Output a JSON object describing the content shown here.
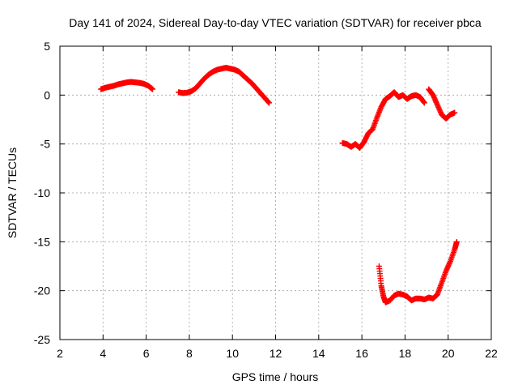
{
  "chart_data": {
    "type": "scatter",
    "title": "Day 141 of 2024, Sidereal Day-to-day VTEC variation (SDTVAR) for receiver pbca",
    "xlabel": "GPS time / hours",
    "ylabel": "SDTVAR / TECUs",
    "xlim": [
      2,
      22
    ],
    "ylim": [
      -25,
      5
    ],
    "xticks": [
      2,
      4,
      6,
      8,
      10,
      12,
      14,
      16,
      18,
      20,
      22
    ],
    "yticks": [
      5,
      0,
      -5,
      -10,
      -15,
      -20,
      -25
    ],
    "grid": true,
    "marker": "plus",
    "series": [
      {
        "name": "pbca",
        "color": "#ff0000",
        "segments": [
          {
            "x": [
              3.9,
              4.1,
              4.3,
              4.5,
              4.7,
              4.9,
              5.1,
              5.3,
              5.5,
              5.7,
              5.9,
              6.1,
              6.3
            ],
            "y": [
              0.6,
              0.75,
              0.85,
              0.95,
              1.1,
              1.2,
              1.3,
              1.35,
              1.3,
              1.25,
              1.15,
              0.95,
              0.6
            ]
          },
          {
            "x": [
              7.5,
              7.7,
              7.9,
              8.1,
              8.3,
              8.5,
              8.7,
              8.9,
              9.1,
              9.3,
              9.5,
              9.7,
              9.9,
              10.1,
              10.3,
              10.5,
              10.7,
              10.9,
              11.1,
              11.3,
              11.5,
              11.7
            ],
            "y": [
              0.3,
              0.2,
              0.25,
              0.4,
              0.7,
              1.2,
              1.7,
              2.1,
              2.4,
              2.6,
              2.7,
              2.8,
              2.7,
              2.6,
              2.4,
              2.0,
              1.6,
              1.2,
              0.7,
              0.2,
              -0.3,
              -0.8
            ]
          },
          {
            "x": [
              15.1,
              15.3,
              15.5,
              15.7,
              15.9,
              16.1,
              16.3,
              16.5,
              16.7,
              16.9,
              17.1,
              17.3,
              17.5,
              17.7,
              17.9,
              18.1,
              18.3,
              18.5,
              18.7,
              18.9
            ],
            "y": [
              -4.9,
              -5.0,
              -5.3,
              -5.0,
              -5.4,
              -4.8,
              -3.9,
              -3.5,
              -2.3,
              -1.2,
              -0.4,
              -0.1,
              0.3,
              -0.2,
              0.0,
              -0.4,
              -0.1,
              0.0,
              -0.2,
              -0.8
            ]
          },
          {
            "x": [
              19.1,
              19.3,
              19.5,
              19.7,
              19.9,
              20.1,
              20.3
            ],
            "y": [
              0.6,
              0.0,
              -1.0,
              -2.0,
              -2.4,
              -2.0,
              -1.8
            ]
          },
          {
            "x": [
              16.8,
              16.9,
              17.0,
              17.1,
              17.3,
              17.5,
              17.7,
              17.9,
              18.1,
              18.3,
              18.5,
              18.7,
              18.9,
              19.1,
              19.3,
              19.5,
              19.7,
              19.9,
              20.1,
              20.3,
              20.4
            ],
            "y": [
              -17.5,
              -19.5,
              -20.6,
              -21.2,
              -21.0,
              -20.5,
              -20.3,
              -20.4,
              -20.6,
              -21.0,
              -20.8,
              -20.8,
              -20.9,
              -20.7,
              -20.8,
              -20.4,
              -19.2,
              -18.0,
              -17.0,
              -15.8,
              -15.0
            ]
          }
        ]
      }
    ]
  }
}
